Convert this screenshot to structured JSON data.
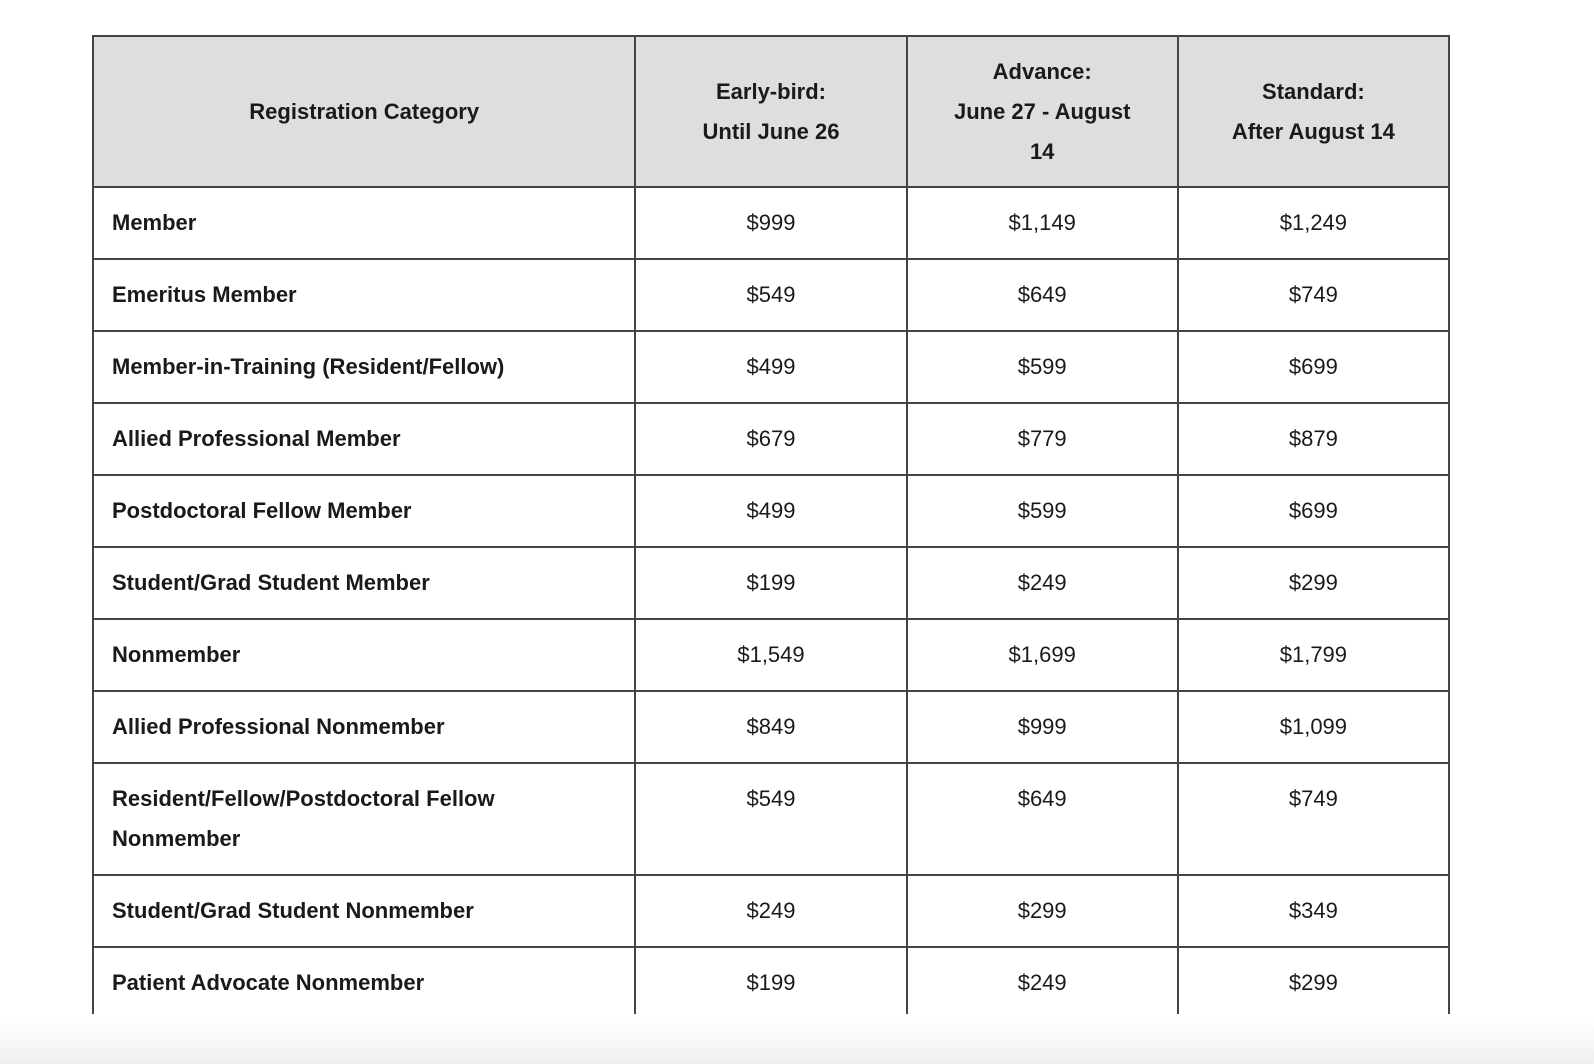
{
  "colors": {
    "header_bg": "#dedede",
    "border": "#444444",
    "text": "#1a1a1a",
    "row_bg": "#ffffff"
  },
  "table": {
    "columns": [
      {
        "key": "category",
        "label_lines": [
          "Registration Category"
        ]
      },
      {
        "key": "early_bird",
        "label_lines": [
          "Early-bird:",
          "Until June 26"
        ]
      },
      {
        "key": "advance",
        "label_lines": [
          "Advance:",
          "June 27 - August",
          "14"
        ]
      },
      {
        "key": "standard",
        "label_lines": [
          "Standard:",
          "After August 14"
        ]
      }
    ],
    "rows": [
      {
        "category_lines": [
          "Member"
        ],
        "early_bird": "$999",
        "advance": "$1,149",
        "standard": "$1,249"
      },
      {
        "category_lines": [
          "Emeritus Member"
        ],
        "early_bird": "$549",
        "advance": "$649",
        "standard": "$749"
      },
      {
        "category_lines": [
          "Member-in-Training (Resident/Fellow)"
        ],
        "early_bird": "$499",
        "advance": "$599",
        "standard": "$699"
      },
      {
        "category_lines": [
          "Allied Professional Member"
        ],
        "early_bird": "$679",
        "advance": "$779",
        "standard": "$879"
      },
      {
        "category_lines": [
          "Postdoctoral Fellow Member"
        ],
        "early_bird": "$499",
        "advance": "$599",
        "standard": "$699"
      },
      {
        "category_lines": [
          "Student/Grad Student Member"
        ],
        "early_bird": "$199",
        "advance": "$249",
        "standard": "$299"
      },
      {
        "category_lines": [
          "Nonmember"
        ],
        "early_bird": "$1,549",
        "advance": "$1,699",
        "standard": "$1,799"
      },
      {
        "category_lines": [
          "Allied Professional Nonmember"
        ],
        "early_bird": "$849",
        "advance": "$999",
        "standard": "$1,099"
      },
      {
        "category_lines": [
          "Resident/Fellow/Postdoctoral Fellow",
          "Nonmember"
        ],
        "early_bird": "$549",
        "advance": "$649",
        "standard": "$749"
      },
      {
        "category_lines": [
          "Student/Grad Student Nonmember"
        ],
        "early_bird": "$249",
        "advance": "$299",
        "standard": "$349"
      },
      {
        "category_lines": [
          "Patient Advocate Nonmember"
        ],
        "early_bird": "$199",
        "advance": "$249",
        "standard": "$299"
      }
    ]
  }
}
